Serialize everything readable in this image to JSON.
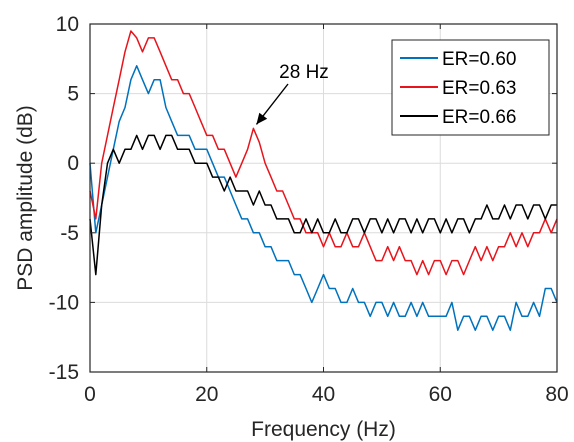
{
  "chart_data": {
    "type": "line",
    "xlabel": "Frequency (Hz)",
    "ylabel": "PSD amplitude (dB)",
    "xlim": [
      0,
      80
    ],
    "ylim": [
      -15,
      10
    ],
    "xticks": [
      0,
      20,
      40,
      60,
      80
    ],
    "yticks": [
      -15,
      -10,
      -5,
      0,
      5,
      10
    ],
    "grid": true,
    "legend_position": "top-right",
    "annotation": {
      "text": "28 Hz",
      "x": 28,
      "y": 2.5
    },
    "series": [
      {
        "name": "ER=0.60",
        "color": "#0072BD",
        "x": [
          0,
          1,
          2,
          3,
          4,
          5,
          6,
          7,
          8,
          9,
          10,
          11,
          12,
          13,
          14,
          15,
          16,
          17,
          18,
          19,
          20,
          21,
          22,
          23,
          24,
          25,
          26,
          27,
          28,
          29,
          30,
          31,
          32,
          33,
          34,
          35,
          36,
          37,
          38,
          39,
          40,
          41,
          42,
          43,
          44,
          45,
          46,
          47,
          48,
          49,
          50,
          51,
          52,
          53,
          54,
          55,
          56,
          57,
          58,
          59,
          60,
          61,
          62,
          63,
          64,
          65,
          66,
          67,
          68,
          69,
          70,
          71,
          72,
          73,
          74,
          75,
          76,
          77,
          78,
          79,
          80
        ],
        "values": [
          0,
          -5,
          -3,
          -1,
          1,
          3,
          4,
          6,
          7,
          6,
          5,
          6,
          6,
          4,
          3,
          2,
          2,
          2,
          1,
          1,
          1,
          0,
          -1,
          -1,
          -2,
          -3,
          -4,
          -4,
          -5,
          -5,
          -6,
          -6,
          -7,
          -7,
          -7,
          -8,
          -8,
          -9,
          -10,
          -9,
          -8,
          -9,
          -9,
          -10,
          -10,
          -9,
          -10,
          -10,
          -11,
          -10,
          -10,
          -11,
          -10,
          -11,
          -11,
          -10,
          -11,
          -10,
          -11,
          -11,
          -11,
          -11,
          -10,
          -12,
          -11,
          -11,
          -12,
          -11,
          -11,
          -12,
          -11,
          -11,
          -12,
          -10,
          -11,
          -11,
          -10,
          -11,
          -9,
          -9,
          -10
        ]
      },
      {
        "name": "ER=0.63",
        "color": "#E8141C",
        "x": [
          0,
          1,
          2,
          3,
          4,
          5,
          6,
          7,
          8,
          9,
          10,
          11,
          12,
          13,
          14,
          15,
          16,
          17,
          18,
          19,
          20,
          21,
          22,
          23,
          24,
          25,
          26,
          27,
          28,
          29,
          30,
          31,
          32,
          33,
          34,
          35,
          36,
          37,
          38,
          39,
          40,
          41,
          42,
          43,
          44,
          45,
          46,
          47,
          48,
          49,
          50,
          51,
          52,
          53,
          54,
          55,
          56,
          57,
          58,
          59,
          60,
          61,
          62,
          63,
          64,
          65,
          66,
          67,
          68,
          69,
          70,
          71,
          72,
          73,
          74,
          75,
          76,
          77,
          78,
          79,
          80
        ],
        "values": [
          -2,
          -4,
          0,
          2,
          4,
          6,
          8,
          9.5,
          9,
          8,
          9,
          9,
          8,
          7,
          6,
          6,
          5,
          5,
          4,
          3,
          2,
          2,
          1,
          1,
          0,
          -1,
          0,
          1,
          2.5,
          1.5,
          0,
          -1,
          -2,
          -2,
          -3,
          -4,
          -4,
          -5,
          -5,
          -5,
          -6,
          -5,
          -6,
          -6,
          -5,
          -6,
          -6,
          -5,
          -6,
          -7,
          -7,
          -6,
          -7,
          -6,
          -7,
          -7,
          -8,
          -7,
          -8,
          -7,
          -7,
          -8,
          -7,
          -7,
          -8,
          -7,
          -6,
          -7,
          -6,
          -7,
          -6,
          -6,
          -5,
          -6,
          -5,
          -6,
          -5,
          -5,
          -4,
          -5,
          -4
        ]
      },
      {
        "name": "ER=0.66",
        "color": "#000000",
        "x": [
          0,
          1,
          2,
          3,
          4,
          5,
          6,
          7,
          8,
          9,
          10,
          11,
          12,
          13,
          14,
          15,
          16,
          17,
          18,
          19,
          20,
          21,
          22,
          23,
          24,
          25,
          26,
          27,
          28,
          29,
          30,
          31,
          32,
          33,
          34,
          35,
          36,
          37,
          38,
          39,
          40,
          41,
          42,
          43,
          44,
          45,
          46,
          47,
          48,
          49,
          50,
          51,
          52,
          53,
          54,
          55,
          56,
          57,
          58,
          59,
          60,
          61,
          62,
          63,
          64,
          65,
          66,
          67,
          68,
          69,
          70,
          71,
          72,
          73,
          74,
          75,
          76,
          77,
          78,
          79,
          80
        ],
        "values": [
          -4,
          -8,
          -3,
          0,
          1,
          0,
          1,
          1,
          2,
          1,
          2,
          2,
          1,
          2,
          2,
          1,
          1,
          1,
          0,
          0,
          0,
          -1,
          -1,
          -2,
          -1,
          -2,
          -2,
          -2,
          -3,
          -2,
          -3,
          -3,
          -4,
          -4,
          -4,
          -5,
          -5,
          -4,
          -5,
          -4,
          -5,
          -5,
          -4,
          -5,
          -5,
          -4,
          -4,
          -5,
          -4,
          -4,
          -5,
          -4,
          -5,
          -4,
          -4,
          -5,
          -4,
          -5,
          -4,
          -4,
          -5,
          -4,
          -5,
          -4,
          -4,
          -5,
          -4,
          -4,
          -3,
          -4,
          -4,
          -3,
          -4,
          -3,
          -3,
          -4,
          -3,
          -3,
          -4,
          -3,
          -3
        ]
      }
    ]
  }
}
